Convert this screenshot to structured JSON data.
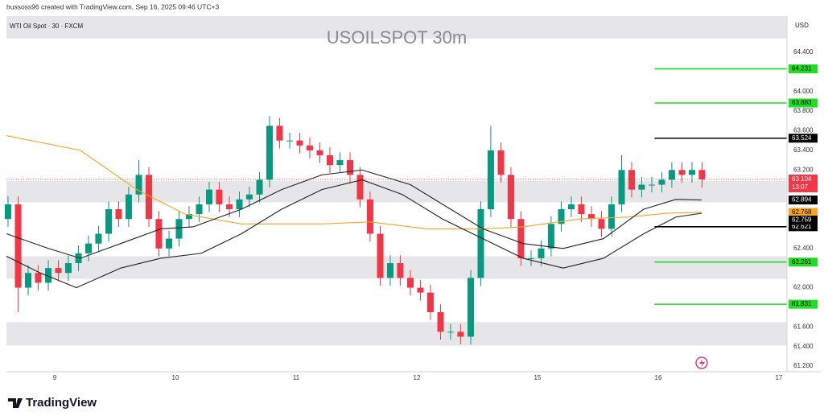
{
  "header": {
    "credit": "hussoss96 created with TradingView.com, Sep 16, 2025 09:46 UTC+3",
    "brand": "TradingView"
  },
  "chart_data": {
    "type": "candlestick",
    "title": "USOILSPOT 30m",
    "symbol": "WTI Oil Spot · 30 · FXCM",
    "currency": "USD",
    "countdown": "13:07",
    "up_color": "#089981",
    "down_color": "#f23645",
    "grid": false,
    "xlim": [
      0.6,
      7.067
    ],
    "ylim": [
      61.143,
      64.769
    ],
    "xticks": [
      {
        "value": 1,
        "label": "9"
      },
      {
        "value": 2,
        "label": "10"
      },
      {
        "value": 3,
        "label": "11"
      },
      {
        "value": 4,
        "label": "12"
      },
      {
        "value": 5,
        "label": "15"
      },
      {
        "value": 6,
        "label": "16"
      },
      {
        "value": 7,
        "label": "17"
      }
    ],
    "yticks": [
      {
        "value": 64.4,
        "label": "64.400"
      },
      {
        "value": 64.0,
        "label": "64.000"
      },
      {
        "value": 63.8,
        "label": "63.800"
      },
      {
        "value": 63.6,
        "label": "63.600"
      },
      {
        "value": 63.4,
        "label": "63.400"
      },
      {
        "value": 63.2,
        "label": "63.200"
      },
      {
        "value": 62.4,
        "label": "62.400"
      },
      {
        "value": 62.0,
        "label": "62.000"
      },
      {
        "value": 61.6,
        "label": "61.600"
      },
      {
        "value": 61.4,
        "label": "61.400"
      },
      {
        "value": 61.2,
        "label": "61.200"
      }
    ],
    "x": [
      0.613,
      0.697,
      0.78,
      0.863,
      0.947,
      1.03,
      1.113,
      1.197,
      1.28,
      1.363,
      1.447,
      1.53,
      1.613,
      1.697,
      1.78,
      1.863,
      1.947,
      2.03,
      2.113,
      2.197,
      2.28,
      2.363,
      2.447,
      2.53,
      2.613,
      2.697,
      2.78,
      2.863,
      2.947,
      3.03,
      3.113,
      3.197,
      3.28,
      3.363,
      3.447,
      3.53,
      3.613,
      3.697,
      3.78,
      3.863,
      3.947,
      4.03,
      4.113,
      4.197,
      4.28,
      4.363,
      4.447,
      4.53,
      4.613,
      4.697,
      4.78,
      4.863,
      4.947,
      5.03,
      5.113,
      5.197,
      5.28,
      5.363,
      5.447,
      5.53,
      5.613,
      5.697,
      5.78,
      5.863,
      5.947,
      6.03,
      6.113,
      6.197,
      6.28,
      6.363
    ],
    "open": [
      62.7,
      62.85,
      62.0,
      62.15,
      62.05,
      62.2,
      62.15,
      62.25,
      62.35,
      62.45,
      62.55,
      62.8,
      62.7,
      62.95,
      63.15,
      62.7,
      62.4,
      62.5,
      62.7,
      62.75,
      62.85,
      63.0,
      62.85,
      62.8,
      62.9,
      62.95,
      63.1,
      63.65,
      63.5,
      63.5,
      63.45,
      63.4,
      63.35,
      63.25,
      63.3,
      63.15,
      62.9,
      62.55,
      62.1,
      62.25,
      62.1,
      62.0,
      61.95,
      61.75,
      61.55,
      61.55,
      61.5,
      62.1,
      62.8,
      63.4,
      63.15,
      62.7,
      62.3,
      62.3,
      62.4,
      62.65,
      62.8,
      62.85,
      62.75,
      62.7,
      62.6,
      62.85,
      63.2,
      63.0,
      63.05,
      63.05,
      63.1,
      63.2,
      63.15,
      63.2
    ],
    "high": [
      62.93,
      62.93,
      62.23,
      62.23,
      62.28,
      62.28,
      62.33,
      62.43,
      62.53,
      62.63,
      62.88,
      62.88,
      63.03,
      63.3,
      63.23,
      62.78,
      62.58,
      62.78,
      62.83,
      62.93,
      63.08,
      63.08,
      62.93,
      62.98,
      63.03,
      63.18,
      63.75,
      63.73,
      63.58,
      63.58,
      63.53,
      63.48,
      63.43,
      63.38,
      63.38,
      63.23,
      62.98,
      62.63,
      62.33,
      62.33,
      62.18,
      62.08,
      62.03,
      61.83,
      61.63,
      61.63,
      62.18,
      62.88,
      63.65,
      63.48,
      63.23,
      62.78,
      62.38,
      62.48,
      62.73,
      62.88,
      62.93,
      62.93,
      62.83,
      62.78,
      62.93,
      63.35,
      63.28,
      63.13,
      63.13,
      63.18,
      63.28,
      63.28,
      63.28,
      63.28
    ],
    "low": [
      62.62,
      61.75,
      61.92,
      61.97,
      61.97,
      62.07,
      62.07,
      62.17,
      62.27,
      62.37,
      62.47,
      62.62,
      62.62,
      62.87,
      62.62,
      62.32,
      62.32,
      62.42,
      62.62,
      62.67,
      62.77,
      62.77,
      62.72,
      62.72,
      62.82,
      62.87,
      63.02,
      63.42,
      63.42,
      63.37,
      63.32,
      63.27,
      63.17,
      63.17,
      63.07,
      62.82,
      62.47,
      62.02,
      62.02,
      62.02,
      61.92,
      61.87,
      61.67,
      61.47,
      61.47,
      61.42,
      61.42,
      62.02,
      62.72,
      63.07,
      62.62,
      62.22,
      62.22,
      62.22,
      62.32,
      62.57,
      62.72,
      62.67,
      62.62,
      62.52,
      62.52,
      62.77,
      62.92,
      62.92,
      62.97,
      62.97,
      63.02,
      63.07,
      63.07,
      63.02
    ],
    "close": [
      62.85,
      62.0,
      62.15,
      62.05,
      62.2,
      62.15,
      62.25,
      62.35,
      62.45,
      62.55,
      62.8,
      62.7,
      62.95,
      63.15,
      62.7,
      62.4,
      62.5,
      62.7,
      62.75,
      62.85,
      63.0,
      62.85,
      62.8,
      62.9,
      62.95,
      63.1,
      63.65,
      63.5,
      63.5,
      63.45,
      63.4,
      63.35,
      63.25,
      63.3,
      63.15,
      62.9,
      62.55,
      62.1,
      62.25,
      62.1,
      62.0,
      61.95,
      61.75,
      61.55,
      61.55,
      61.5,
      62.1,
      62.8,
      63.4,
      63.15,
      62.7,
      62.3,
      62.3,
      62.4,
      62.65,
      62.8,
      62.85,
      62.75,
      62.7,
      62.6,
      62.85,
      63.2,
      63.0,
      63.05,
      63.05,
      63.1,
      63.2,
      63.15,
      63.2,
      63.104
    ],
    "series": [
      {
        "color": "#f5a623",
        "x": [
          0.6,
          1.213,
          1.68,
          2.08,
          2.547,
          3.213,
          3.613,
          4.08,
          4.547,
          4.88,
          5.347,
          5.747,
          6.08,
          6.36
        ],
        "values": [
          63.55,
          63.4,
          63.0,
          62.75,
          62.65,
          62.65,
          62.67,
          62.6,
          62.6,
          62.62,
          62.7,
          62.72,
          62.76,
          62.768
        ]
      },
      {
        "color": "#222222",
        "x": [
          0.6,
          0.947,
          1.213,
          1.547,
          1.88,
          2.147,
          2.547,
          2.88,
          3.213,
          3.547,
          3.947,
          4.28,
          4.547,
          4.88,
          5.213,
          5.547,
          5.88,
          6.147,
          6.36
        ],
        "values": [
          62.55,
          62.4,
          62.3,
          62.45,
          62.6,
          62.62,
          62.8,
          63.0,
          63.15,
          63.2,
          63.05,
          62.8,
          62.6,
          62.45,
          62.4,
          62.5,
          62.8,
          62.9,
          62.894
        ]
      },
      {
        "color": "#222222",
        "x": [
          0.6,
          0.88,
          1.18,
          1.547,
          1.88,
          2.213,
          2.547,
          2.88,
          3.213,
          3.547,
          3.88,
          4.213,
          4.547,
          4.88,
          5.213,
          5.547,
          5.88,
          6.147,
          6.36
        ],
        "values": [
          62.32,
          62.15,
          62.0,
          62.2,
          62.3,
          62.35,
          62.55,
          62.8,
          63.0,
          63.1,
          62.95,
          62.7,
          62.5,
          62.3,
          62.2,
          62.3,
          62.55,
          62.72,
          62.759
        ]
      }
    ],
    "levels": [
      {
        "value": 64.231,
        "color": "#22dd22"
      },
      {
        "value": 63.883,
        "color": "#22dd22"
      },
      {
        "value": 63.524,
        "color": "#000000"
      },
      {
        "value": 62.621,
        "color": "#000000"
      },
      {
        "value": 62.261,
        "color": "#22dd22"
      },
      {
        "value": 61.831,
        "color": "#22dd22"
      }
    ],
    "levels_start": 5.97,
    "zones": [
      [
        64.54,
        64.769
      ],
      [
        62.87,
        63.09
      ],
      [
        62.09,
        62.32
      ],
      [
        61.41,
        61.65
      ]
    ],
    "zone_color": "#e6e6e9"
  }
}
